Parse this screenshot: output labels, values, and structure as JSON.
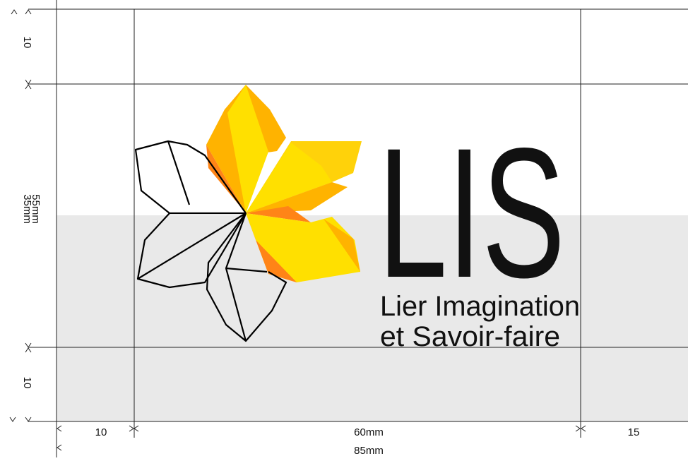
{
  "dimensions": {
    "top_margin": "10",
    "inner_height": "35mm",
    "total_height": "55mm",
    "bottom_margin": "10",
    "left_margin": "10",
    "inner_width": "60mm",
    "right_margin": "15",
    "total_width": "85mm"
  },
  "logo": {
    "wordmark": "LIS",
    "tagline_line1": "Lier Imagination",
    "tagline_line2": "et Savoir-faire"
  }
}
